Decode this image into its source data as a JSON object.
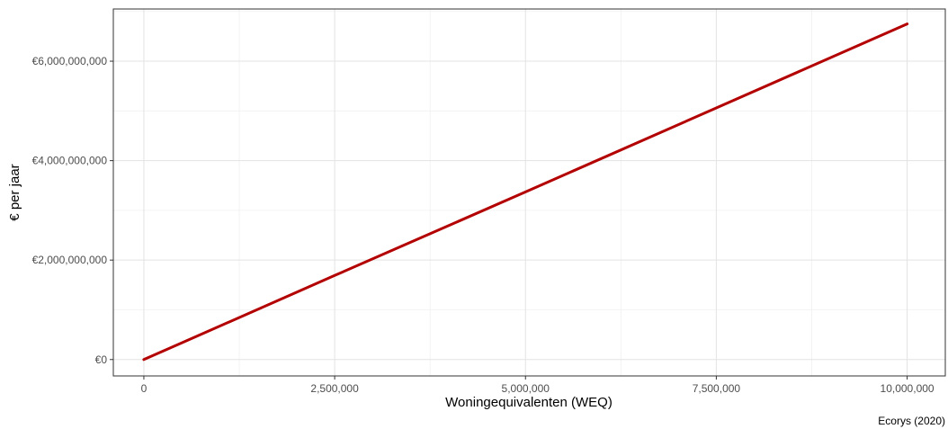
{
  "chart_data": {
    "type": "line",
    "xlabel": "Woningequivalenten (WEQ)",
    "ylabel": "€ per jaar",
    "caption": "Ecorys (2020)",
    "xlim": [
      -400000,
      10500000
    ],
    "ylim": [
      -330000000,
      7050000000
    ],
    "x_ticks": [
      0,
      2500000,
      5000000,
      7500000,
      10000000
    ],
    "x_tick_labels": [
      "0",
      "2,500,000",
      "5,000,000",
      "7,500,000",
      "10,000,000"
    ],
    "y_ticks": [
      0,
      2000000000,
      4000000000,
      6000000000
    ],
    "y_tick_labels": [
      "€0",
      "€2,000,000,000",
      "€4,000,000,000",
      "€6,000,000,000"
    ],
    "grid": true,
    "series": [
      {
        "color": "#b30000",
        "x": [
          0,
          2500000,
          5000000,
          7500000,
          10000000
        ],
        "y": [
          0,
          1690000000,
          3370000000,
          5060000000,
          6750000000
        ]
      }
    ]
  }
}
